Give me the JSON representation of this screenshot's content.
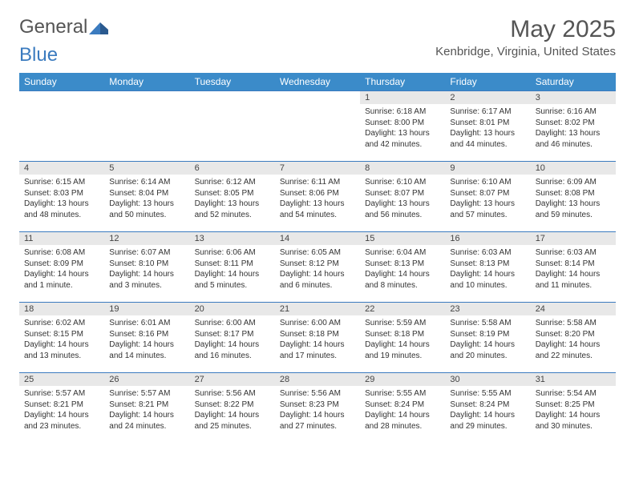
{
  "logo": {
    "general": "General",
    "blue": "Blue"
  },
  "title": "May 2025",
  "location": "Kenbridge, Virginia, United States",
  "colors": {
    "header_bg": "#3b8bc9",
    "header_text": "#ffffff",
    "border": "#3b7bbf",
    "daynum_bg": "#e8e8e8",
    "text": "#333333",
    "logo_gray": "#555555",
    "logo_blue": "#3b7bbf"
  },
  "weekdays": [
    "Sunday",
    "Monday",
    "Tuesday",
    "Wednesday",
    "Thursday",
    "Friday",
    "Saturday"
  ],
  "weeks": [
    [
      null,
      null,
      null,
      null,
      {
        "n": "1",
        "sr": "6:18 AM",
        "ss": "8:00 PM",
        "dl": "13 hours and 42 minutes."
      },
      {
        "n": "2",
        "sr": "6:17 AM",
        "ss": "8:01 PM",
        "dl": "13 hours and 44 minutes."
      },
      {
        "n": "3",
        "sr": "6:16 AM",
        "ss": "8:02 PM",
        "dl": "13 hours and 46 minutes."
      }
    ],
    [
      {
        "n": "4",
        "sr": "6:15 AM",
        "ss": "8:03 PM",
        "dl": "13 hours and 48 minutes."
      },
      {
        "n": "5",
        "sr": "6:14 AM",
        "ss": "8:04 PM",
        "dl": "13 hours and 50 minutes."
      },
      {
        "n": "6",
        "sr": "6:12 AM",
        "ss": "8:05 PM",
        "dl": "13 hours and 52 minutes."
      },
      {
        "n": "7",
        "sr": "6:11 AM",
        "ss": "8:06 PM",
        "dl": "13 hours and 54 minutes."
      },
      {
        "n": "8",
        "sr": "6:10 AM",
        "ss": "8:07 PM",
        "dl": "13 hours and 56 minutes."
      },
      {
        "n": "9",
        "sr": "6:10 AM",
        "ss": "8:07 PM",
        "dl": "13 hours and 57 minutes."
      },
      {
        "n": "10",
        "sr": "6:09 AM",
        "ss": "8:08 PM",
        "dl": "13 hours and 59 minutes."
      }
    ],
    [
      {
        "n": "11",
        "sr": "6:08 AM",
        "ss": "8:09 PM",
        "dl": "14 hours and 1 minute."
      },
      {
        "n": "12",
        "sr": "6:07 AM",
        "ss": "8:10 PM",
        "dl": "14 hours and 3 minutes."
      },
      {
        "n": "13",
        "sr": "6:06 AM",
        "ss": "8:11 PM",
        "dl": "14 hours and 5 minutes."
      },
      {
        "n": "14",
        "sr": "6:05 AM",
        "ss": "8:12 PM",
        "dl": "14 hours and 6 minutes."
      },
      {
        "n": "15",
        "sr": "6:04 AM",
        "ss": "8:13 PM",
        "dl": "14 hours and 8 minutes."
      },
      {
        "n": "16",
        "sr": "6:03 AM",
        "ss": "8:13 PM",
        "dl": "14 hours and 10 minutes."
      },
      {
        "n": "17",
        "sr": "6:03 AM",
        "ss": "8:14 PM",
        "dl": "14 hours and 11 minutes."
      }
    ],
    [
      {
        "n": "18",
        "sr": "6:02 AM",
        "ss": "8:15 PM",
        "dl": "14 hours and 13 minutes."
      },
      {
        "n": "19",
        "sr": "6:01 AM",
        "ss": "8:16 PM",
        "dl": "14 hours and 14 minutes."
      },
      {
        "n": "20",
        "sr": "6:00 AM",
        "ss": "8:17 PM",
        "dl": "14 hours and 16 minutes."
      },
      {
        "n": "21",
        "sr": "6:00 AM",
        "ss": "8:18 PM",
        "dl": "14 hours and 17 minutes."
      },
      {
        "n": "22",
        "sr": "5:59 AM",
        "ss": "8:18 PM",
        "dl": "14 hours and 19 minutes."
      },
      {
        "n": "23",
        "sr": "5:58 AM",
        "ss": "8:19 PM",
        "dl": "14 hours and 20 minutes."
      },
      {
        "n": "24",
        "sr": "5:58 AM",
        "ss": "8:20 PM",
        "dl": "14 hours and 22 minutes."
      }
    ],
    [
      {
        "n": "25",
        "sr": "5:57 AM",
        "ss": "8:21 PM",
        "dl": "14 hours and 23 minutes."
      },
      {
        "n": "26",
        "sr": "5:57 AM",
        "ss": "8:21 PM",
        "dl": "14 hours and 24 minutes."
      },
      {
        "n": "27",
        "sr": "5:56 AM",
        "ss": "8:22 PM",
        "dl": "14 hours and 25 minutes."
      },
      {
        "n": "28",
        "sr": "5:56 AM",
        "ss": "8:23 PM",
        "dl": "14 hours and 27 minutes."
      },
      {
        "n": "29",
        "sr": "5:55 AM",
        "ss": "8:24 PM",
        "dl": "14 hours and 28 minutes."
      },
      {
        "n": "30",
        "sr": "5:55 AM",
        "ss": "8:24 PM",
        "dl": "14 hours and 29 minutes."
      },
      {
        "n": "31",
        "sr": "5:54 AM",
        "ss": "8:25 PM",
        "dl": "14 hours and 30 minutes."
      }
    ]
  ],
  "labels": {
    "sunrise": "Sunrise:",
    "sunset": "Sunset:",
    "daylight": "Daylight:"
  }
}
